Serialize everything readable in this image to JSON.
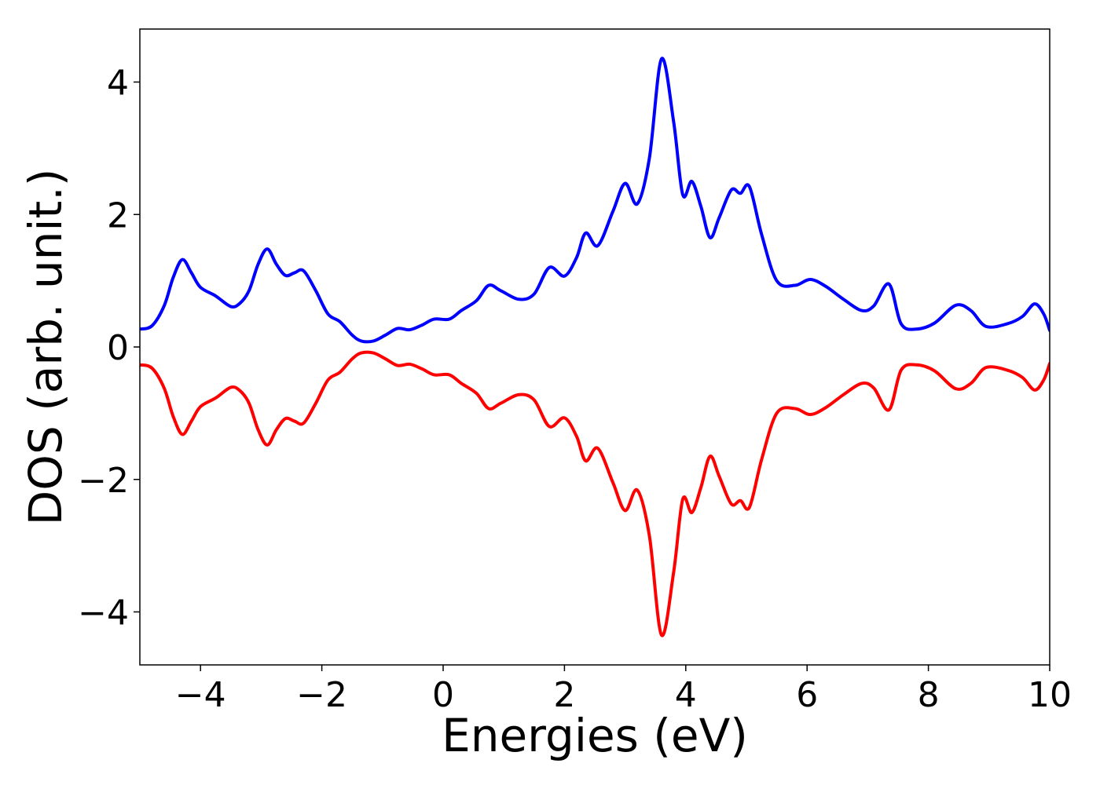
{
  "chart_data": {
    "type": "line",
    "title": "",
    "xlabel": "Energies (eV)",
    "ylabel": "DOS (arb. unit.)",
    "xlim": [
      -5,
      10
    ],
    "ylim": [
      -4.8,
      4.8
    ],
    "xticks": [
      -4,
      -2,
      0,
      2,
      4,
      6,
      8,
      10
    ],
    "xtick_labels": [
      "−4",
      "−2",
      "0",
      "2",
      "4",
      "6",
      "8",
      "10"
    ],
    "yticks": [
      -4,
      -2,
      0,
      2,
      4
    ],
    "ytick_labels": [
      "−4",
      "−2",
      "0",
      "2",
      "4"
    ],
    "grid": false,
    "legend": false,
    "series": [
      {
        "color": "#0000ff",
        "x": [
          -5.0,
          -4.8,
          -4.6,
          -4.45,
          -4.3,
          -4.15,
          -4.0,
          -3.75,
          -3.5,
          -3.35,
          -3.2,
          -3.05,
          -2.9,
          -2.75,
          -2.6,
          -2.45,
          -2.3,
          -2.1,
          -1.9,
          -1.7,
          -1.5,
          -1.35,
          -1.15,
          -0.95,
          -0.75,
          -0.55,
          -0.35,
          -0.15,
          0.1,
          0.3,
          0.55,
          0.75,
          0.95,
          1.25,
          1.5,
          1.75,
          2.0,
          2.2,
          2.35,
          2.55,
          2.8,
          3.0,
          3.2,
          3.4,
          3.6,
          3.8,
          3.95,
          4.1,
          4.25,
          4.4,
          4.55,
          4.75,
          4.9,
          5.05,
          5.25,
          5.5,
          5.8,
          6.05,
          6.3,
          6.6,
          6.9,
          7.1,
          7.35,
          7.55,
          7.8,
          8.1,
          8.45,
          8.7,
          8.95,
          9.3,
          9.55,
          9.75,
          9.9,
          10.0
        ],
        "values": [
          0.27,
          0.32,
          0.62,
          1.05,
          1.32,
          1.12,
          0.9,
          0.77,
          0.61,
          0.66,
          0.85,
          1.25,
          1.48,
          1.25,
          1.08,
          1.12,
          1.15,
          0.85,
          0.5,
          0.38,
          0.18,
          0.09,
          0.09,
          0.18,
          0.28,
          0.26,
          0.33,
          0.42,
          0.42,
          0.55,
          0.7,
          0.93,
          0.85,
          0.72,
          0.8,
          1.2,
          1.07,
          1.35,
          1.72,
          1.53,
          2.05,
          2.47,
          2.16,
          2.85,
          4.35,
          3.4,
          2.3,
          2.5,
          2.12,
          1.65,
          1.95,
          2.37,
          2.32,
          2.42,
          1.7,
          1.0,
          0.93,
          1.02,
          0.92,
          0.72,
          0.55,
          0.62,
          0.95,
          0.35,
          0.27,
          0.36,
          0.63,
          0.55,
          0.31,
          0.35,
          0.46,
          0.65,
          0.5,
          0.25
        ]
      },
      {
        "color": "#ff0000",
        "x": [
          -5.0,
          -4.8,
          -4.6,
          -4.45,
          -4.3,
          -4.15,
          -4.0,
          -3.75,
          -3.5,
          -3.35,
          -3.2,
          -3.05,
          -2.9,
          -2.75,
          -2.6,
          -2.45,
          -2.3,
          -2.1,
          -1.9,
          -1.7,
          -1.5,
          -1.35,
          -1.15,
          -0.95,
          -0.75,
          -0.55,
          -0.35,
          -0.15,
          0.1,
          0.3,
          0.55,
          0.75,
          0.95,
          1.25,
          1.5,
          1.75,
          2.0,
          2.2,
          2.35,
          2.55,
          2.8,
          3.0,
          3.2,
          3.4,
          3.6,
          3.8,
          3.95,
          4.1,
          4.25,
          4.4,
          4.55,
          4.75,
          4.9,
          5.05,
          5.25,
          5.5,
          5.8,
          6.05,
          6.3,
          6.6,
          6.9,
          7.1,
          7.35,
          7.55,
          7.8,
          8.1,
          8.45,
          8.7,
          8.95,
          9.3,
          9.55,
          9.75,
          9.9,
          10.0
        ],
        "values": [
          -0.27,
          -0.32,
          -0.62,
          -1.05,
          -1.32,
          -1.12,
          -0.9,
          -0.77,
          -0.61,
          -0.66,
          -0.85,
          -1.25,
          -1.48,
          -1.25,
          -1.08,
          -1.12,
          -1.15,
          -0.85,
          -0.5,
          -0.38,
          -0.18,
          -0.09,
          -0.09,
          -0.18,
          -0.28,
          -0.26,
          -0.33,
          -0.42,
          -0.42,
          -0.55,
          -0.7,
          -0.93,
          -0.85,
          -0.72,
          -0.8,
          -1.2,
          -1.07,
          -1.35,
          -1.72,
          -1.53,
          -2.05,
          -2.47,
          -2.16,
          -2.85,
          -4.35,
          -3.4,
          -2.3,
          -2.5,
          -2.12,
          -1.65,
          -1.95,
          -2.37,
          -2.32,
          -2.42,
          -1.7,
          -1.0,
          -0.93,
          -1.02,
          -0.92,
          -0.72,
          -0.55,
          -0.62,
          -0.95,
          -0.35,
          -0.27,
          -0.36,
          -0.63,
          -0.55,
          -0.31,
          -0.35,
          -0.46,
          -0.65,
          -0.5,
          -0.25
        ]
      }
    ]
  }
}
